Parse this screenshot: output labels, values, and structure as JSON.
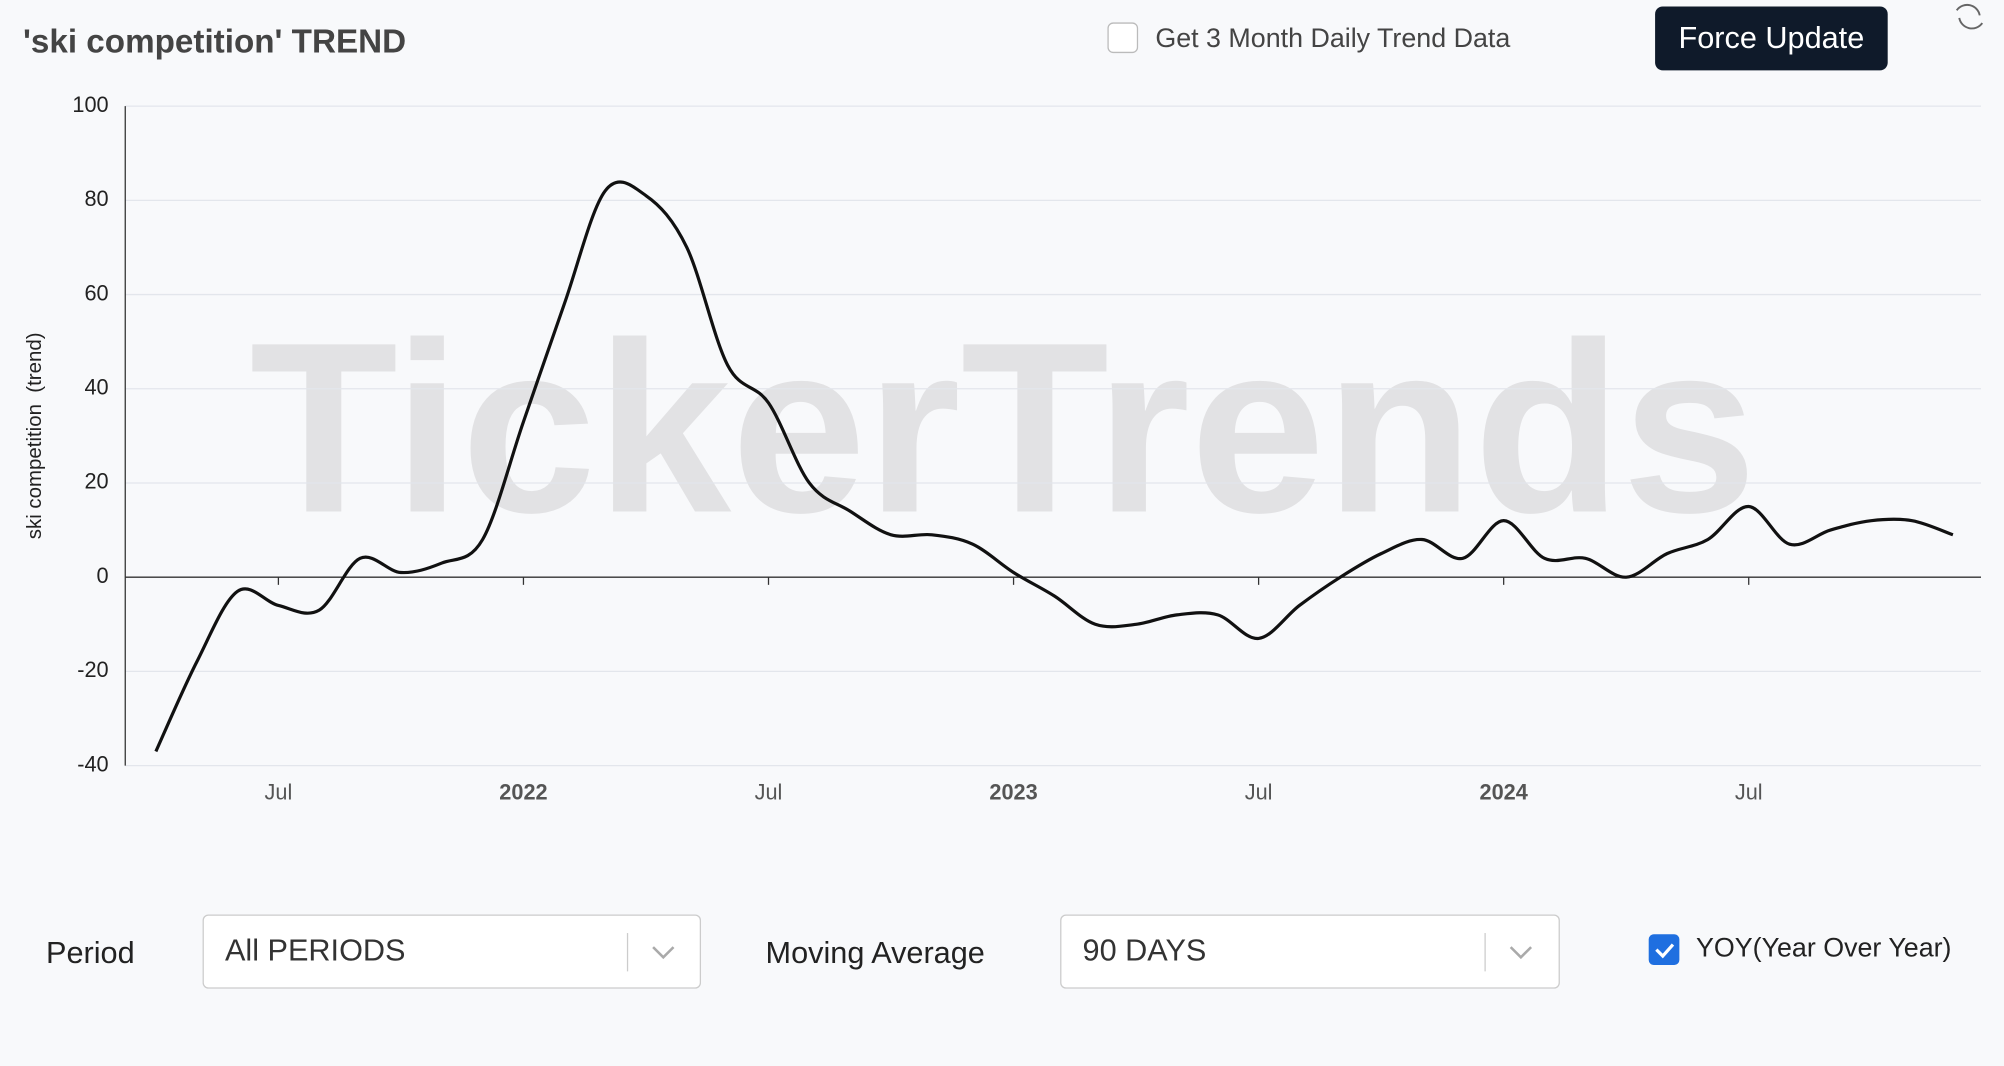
{
  "header": {
    "title": "'ski competition' TREND",
    "checkbox_label": "Get 3 Month Daily Trend Data",
    "button": "Force Update"
  },
  "chart_data": {
    "type": "line",
    "watermark": "TickerTrends",
    "y_label": "ski competition  (trend)",
    "x": [
      "2021-04",
      "2021-05",
      "2021-06",
      "2021-07",
      "2021-08",
      "2021-09",
      "2021-10",
      "2021-11",
      "2021-12",
      "2022-01",
      "2022-02",
      "2022-03",
      "2022-04",
      "2022-05",
      "2022-06",
      "2022-07",
      "2022-08",
      "2022-09",
      "2022-10",
      "2022-11",
      "2022-12",
      "2023-01",
      "2023-02",
      "2023-03",
      "2023-04",
      "2023-05",
      "2023-06",
      "2023-07",
      "2023-08",
      "2023-09",
      "2023-10",
      "2023-11",
      "2023-12",
      "2024-01",
      "2024-02",
      "2024-03",
      "2024-04",
      "2024-05",
      "2024-06",
      "2024-07",
      "2024-08",
      "2024-09",
      "2024-10",
      "2024-11",
      "2024-12"
    ],
    "series": [
      {
        "name": "ski competition",
        "color": "#111111",
        "values": [
          -37,
          -18,
          -3,
          -6,
          -7,
          4,
          1,
          3,
          8,
          33,
          58,
          82,
          81,
          70,
          45,
          37,
          20,
          14,
          9,
          9,
          7,
          1,
          -4,
          -10,
          -10,
          -8,
          -8,
          -13,
          -6,
          0,
          5,
          8,
          4,
          12,
          4,
          4,
          0,
          5,
          8,
          15,
          7,
          10,
          12,
          12,
          9
        ]
      }
    ],
    "xlim": [
      "2021-03",
      "2025-01"
    ],
    "xticks": [
      {
        "value": "2021-07",
        "label": "Jul"
      },
      {
        "value": "2022-01",
        "label": "2022"
      },
      {
        "value": "2022-07",
        "label": "Jul"
      },
      {
        "value": "2023-01",
        "label": "2023"
      },
      {
        "value": "2023-07",
        "label": "Jul"
      },
      {
        "value": "2024-01",
        "label": "2024"
      },
      {
        "value": "2024-07",
        "label": "Jul"
      }
    ],
    "ylim": [
      -40,
      100
    ],
    "yticks": [
      -40,
      -20,
      0,
      20,
      40,
      60,
      80,
      100
    ],
    "grid": true
  },
  "controls": {
    "period_label": "Period",
    "period_value": "All PERIODS",
    "ma_label": "Moving Average",
    "ma_value": "90 DAYS",
    "yoy_label": "YOY(Year Over Year)"
  }
}
